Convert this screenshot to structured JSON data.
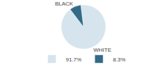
{
  "chart_data": {
    "type": "pie",
    "categories": [
      "WHITE",
      "BLACK"
    ],
    "values": [
      91.7,
      8.3
    ],
    "value_labels": [
      "91.7%",
      "8.3%"
    ],
    "colors": [
      "#d6e4ed",
      "#336b87"
    ],
    "legend": "bottom"
  }
}
